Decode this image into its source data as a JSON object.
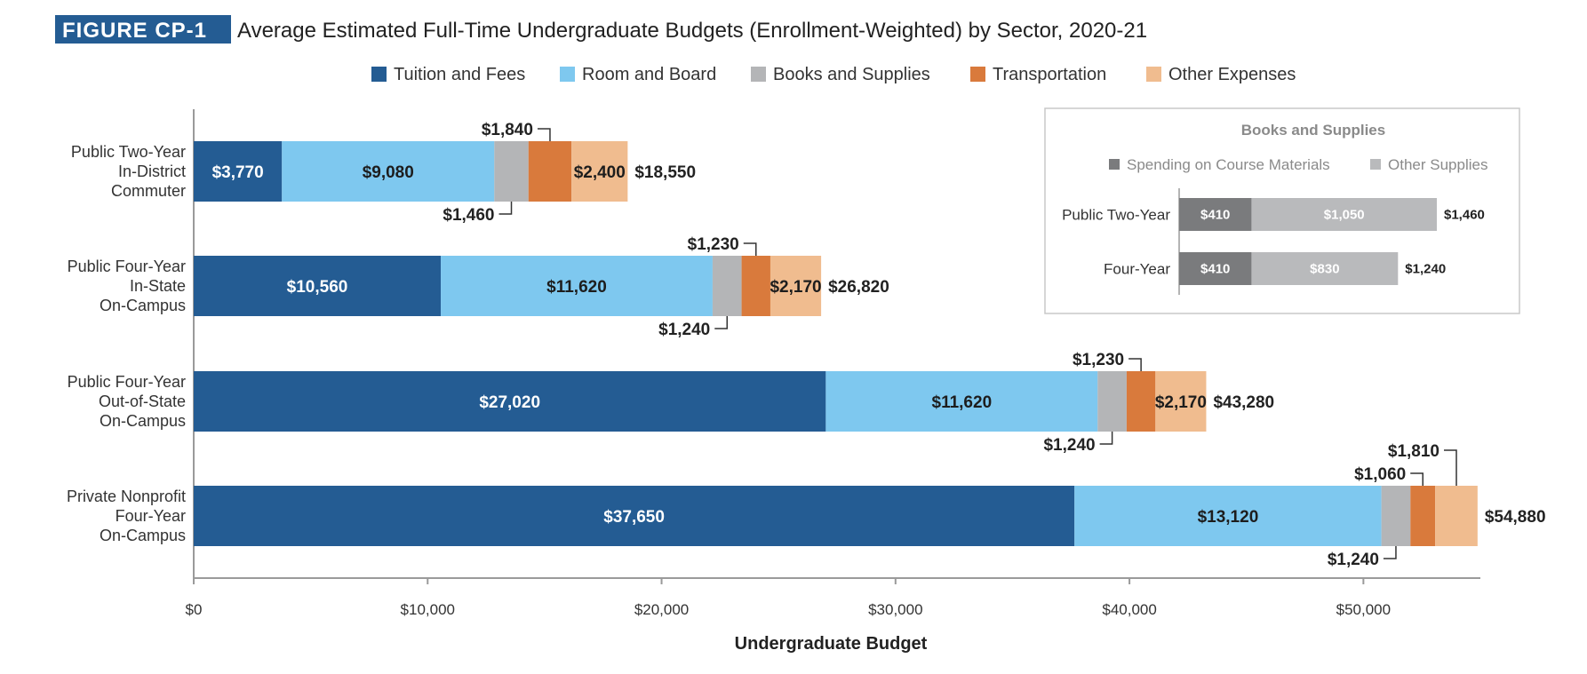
{
  "figure": {
    "tag": "FIGURE CP-1",
    "title": "Average Estimated Full-Time Undergraduate Budgets (Enrollment-Weighted) by Sector, 2020-21"
  },
  "chart_data": [
    {
      "type": "bar",
      "orientation": "horizontal",
      "stacked": true,
      "title": "Average Estimated Full-Time Undergraduate Budgets (Enrollment-Weighted) by Sector, 2020-21",
      "xlabel": "Undergraduate Budget",
      "xlim": [
        0,
        55000
      ],
      "xticks": [
        0,
        10000,
        20000,
        30000,
        40000,
        50000
      ],
      "xtick_labels": [
        "$0",
        "$10,000",
        "$20,000",
        "$30,000",
        "$40,000",
        "$50,000"
      ],
      "legend_position": "top-center",
      "grid": false,
      "categories": [
        [
          "Public Two-Year",
          "In-District",
          "Commuter"
        ],
        [
          "Public Four-Year",
          "In-State",
          "On-Campus"
        ],
        [
          "Public Four-Year",
          "Out-of-State",
          "On-Campus"
        ],
        [
          "Private Nonprofit",
          "Four-Year",
          "On-Campus"
        ]
      ],
      "series": [
        {
          "name": "Tuition and Fees",
          "color": "#245c93",
          "values": [
            3770,
            10560,
            27020,
            37650
          ],
          "labels": [
            "$3,770",
            "$10,560",
            "$27,020",
            "$37,650"
          ]
        },
        {
          "name": "Room and Board",
          "color": "#7ec8ef",
          "values": [
            9080,
            11620,
            11620,
            13120
          ],
          "labels": [
            "$9,080",
            "$11,620",
            "$11,620",
            "$13,120"
          ]
        },
        {
          "name": "Books and Supplies",
          "color": "#b4b5b7",
          "values": [
            1460,
            1240,
            1240,
            1240
          ],
          "labels": [
            "$1,460",
            "$1,240",
            "$1,240",
            "$1,240"
          ]
        },
        {
          "name": "Transportation",
          "color": "#d97a3c",
          "values": [
            1840,
            1230,
            1230,
            1060
          ],
          "labels": [
            "$1,840",
            "$1,230",
            "$1,230",
            "$1,060"
          ]
        },
        {
          "name": "Other Expenses",
          "color": "#f0bc8f",
          "values": [
            2400,
            2170,
            2170,
            1810
          ],
          "labels": [
            "$2,400",
            "$2,170",
            "$2,170",
            "$1,810"
          ]
        }
      ],
      "totals": [
        18550,
        26820,
        43280,
        54880
      ],
      "total_labels": [
        "$18,550",
        "$26,820",
        "$43,280",
        "$54,880"
      ]
    },
    {
      "type": "bar",
      "orientation": "horizontal",
      "stacked": true,
      "title": "Books and Supplies",
      "legend_position": "top",
      "categories": [
        "Public Two-Year",
        "Four-Year"
      ],
      "series": [
        {
          "name": "Spending on Course Materials",
          "color": "#7a7b7d",
          "values": [
            410,
            410
          ],
          "labels": [
            "$410",
            "$410"
          ]
        },
        {
          "name": "Other Supplies",
          "color": "#b9babc",
          "values": [
            1050,
            830
          ],
          "labels": [
            "$1,050",
            "$830"
          ]
        }
      ],
      "totals": [
        1460,
        1240
      ],
      "total_labels": [
        "$1,460",
        "$1,240"
      ]
    }
  ]
}
